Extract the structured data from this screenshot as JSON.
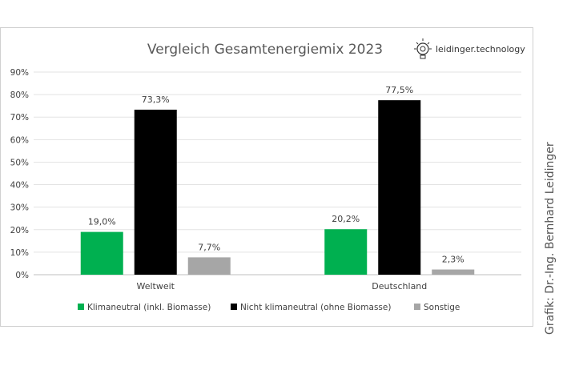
{
  "logo": {
    "text": "leidinger.technology",
    "icon": "lightbulb-gear-icon"
  },
  "credit": "Grafik: Dr.-Ing. Bernhard Leidinger",
  "chart_data": {
    "type": "bar",
    "title": "Vergleich Gesamtenergiemix 2023",
    "categories": [
      "Weltweit",
      "Deutschland"
    ],
    "ylim": [
      0,
      90
    ],
    "yticks": [
      0,
      10,
      20,
      30,
      40,
      50,
      60,
      70,
      80,
      90
    ],
    "ytick_labels": [
      "0%",
      "10%",
      "20%",
      "30%",
      "40%",
      "50%",
      "60%",
      "70%",
      "80%",
      "90%"
    ],
    "grid": true,
    "legend_position": "bottom",
    "series": [
      {
        "name": "Klimaneutral (inkl. Biomasse)",
        "color": "#00b050",
        "values": [
          19.0,
          20.2
        ],
        "labels": [
          "19,0%",
          "20,2%"
        ]
      },
      {
        "name": "Nicht klimaneutral (ohne Biomasse)",
        "color": "#000000",
        "values": [
          73.3,
          77.5
        ],
        "labels": [
          "73,3%",
          "77,5%"
        ]
      },
      {
        "name": "Sonstige",
        "color": "#a6a6a6",
        "values": [
          7.7,
          2.3
        ],
        "labels": [
          "7,7%",
          "2,3%"
        ]
      }
    ]
  }
}
